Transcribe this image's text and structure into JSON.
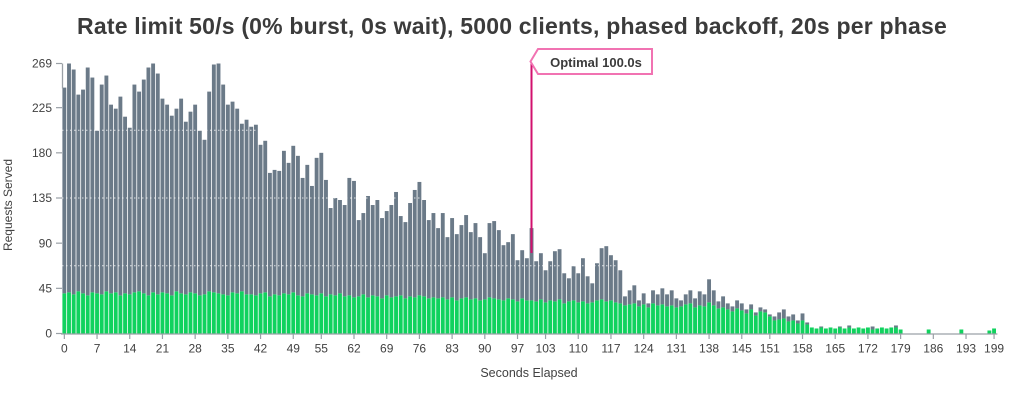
{
  "title": "Rate limit 50/s (0% burst, 0s wait), 5000 clients, phased backoff, 20s per phase",
  "annotation": {
    "label": "Optimal 100.0s",
    "x": 100,
    "line_color": "#d2106e",
    "box_border_color": "#f173b2"
  },
  "axis": {
    "xlabel": "Seconds Elapsed",
    "ylabel": "Requests Served",
    "tick_color": "#9aa0a6",
    "label_color": "#424242"
  },
  "chart_data": {
    "type": "bar",
    "stacked": true,
    "title": "Rate limit 50/s (0% burst, 0s wait), 5000 clients, phased backoff, 20s per phase",
    "xlabel": "Seconds Elapsed",
    "ylabel": "Requests Served",
    "xlim": [
      0,
      199
    ],
    "ylim": [
      0,
      269
    ],
    "x_ticks": [
      0,
      7,
      14,
      21,
      28,
      35,
      42,
      49,
      55,
      62,
      69,
      76,
      83,
      90,
      97,
      103,
      110,
      117,
      124,
      131,
      138,
      145,
      151,
      158,
      165,
      172,
      179,
      186,
      193,
      199
    ],
    "y_ticks": [
      0,
      45,
      90,
      135,
      180,
      225,
      269
    ],
    "minor_gridlines": [
      67.5,
      135,
      202.5
    ],
    "grid_style": "white-dashed-over-bars",
    "legend": "none",
    "series": [
      {
        "name": "green",
        "color": "#10d25e",
        "values": [
          40,
          41,
          39,
          42,
          40,
          38,
          41,
          40,
          39,
          42,
          40,
          41,
          38,
          40,
          39,
          41,
          42,
          40,
          38,
          41,
          39,
          41,
          40,
          38,
          42,
          40,
          39,
          41,
          40,
          38,
          39,
          42,
          41,
          40,
          39,
          38,
          41,
          40,
          42,
          39,
          39,
          38,
          40,
          41,
          37,
          39,
          38,
          40,
          39,
          41,
          38,
          37,
          40,
          39,
          38,
          40,
          37,
          39,
          38,
          40,
          37,
          38,
          36,
          37,
          39,
          36,
          38,
          37,
          35,
          38,
          36,
          37,
          38,
          35,
          37,
          36,
          38,
          37,
          35,
          36,
          35,
          36,
          34,
          36,
          33,
          35,
          36,
          34,
          35,
          33,
          34,
          36,
          35,
          34,
          33,
          35,
          34,
          32,
          35,
          33,
          33,
          32,
          34,
          31,
          33,
          32,
          34,
          30,
          32,
          33,
          31,
          32,
          30,
          31,
          33,
          34,
          32,
          33,
          31,
          30,
          28,
          29,
          30,
          27,
          29,
          26,
          30,
          28,
          29,
          27,
          28,
          26,
          27,
          29,
          30,
          26,
          28,
          27,
          31,
          28,
          25,
          26,
          24,
          22,
          25,
          23,
          20,
          24,
          18,
          22,
          21,
          17,
          13,
          14,
          15,
          12,
          13,
          10,
          13,
          9,
          6,
          5,
          6,
          5,
          6,
          5,
          6,
          5,
          6,
          5,
          6,
          5,
          6,
          4,
          5,
          6,
          5,
          6,
          6,
          4,
          0,
          0,
          0,
          0,
          0,
          4,
          0,
          0,
          0,
          0,
          0,
          0,
          4,
          0,
          0,
          0,
          0,
          0,
          3,
          5
        ]
      },
      {
        "name": "gray",
        "color": "#6b7a88",
        "values": [
          205,
          228,
          224,
          196,
          203,
          227,
          214,
          162,
          209,
          215,
          188,
          183,
          198,
          176,
          166,
          207,
          199,
          213,
          227,
          228,
          220,
          193,
          188,
          179,
          182,
          194,
          172,
          180,
          188,
          164,
          154,
          199,
          227,
          229,
          209,
          190,
          190,
          184,
          167,
          174,
          167,
          170,
          148,
          151,
          123,
          124,
          124,
          142,
          131,
          146,
          139,
          118,
          128,
          108,
          137,
          140,
          116,
          86,
          97,
          93,
          91,
          117,
          116,
          76,
          81,
          101,
          90,
          96,
          80,
          84,
          92,
          104,
          79,
          76,
          93,
          107,
          113,
          96,
          78,
          84,
          70,
          84,
          62,
          79,
          66,
          73,
          82,
          67,
          75,
          63,
          46,
          74,
          77,
          69,
          55,
          56,
          65,
          41,
          48,
          42,
          72,
          40,
          46,
          32,
          39,
          50,
          50,
          30,
          23,
          34,
          29,
          43,
          27,
          19,
          37,
          51,
          55,
          45,
          42,
          33,
          9,
          14,
          18,
          6,
          11,
          4,
          13,
          11,
          16,
          12,
          15,
          9,
          6,
          10,
          13,
          9,
          14,
          12,
          23,
          15,
          7,
          11,
          6,
          5,
          8,
          7,
          4,
          5,
          3,
          4,
          3,
          2,
          4,
          7,
          9,
          5,
          6,
          3,
          7,
          2,
          0,
          0,
          1,
          0,
          0,
          0,
          1,
          0,
          2,
          0,
          0,
          0,
          0,
          3,
          0,
          0,
          0,
          0,
          2,
          0,
          0,
          0,
          0,
          0,
          0,
          0,
          0,
          0,
          0,
          0,
          0,
          0,
          0,
          0,
          0,
          0,
          0,
          0,
          0,
          0
        ]
      }
    ]
  }
}
